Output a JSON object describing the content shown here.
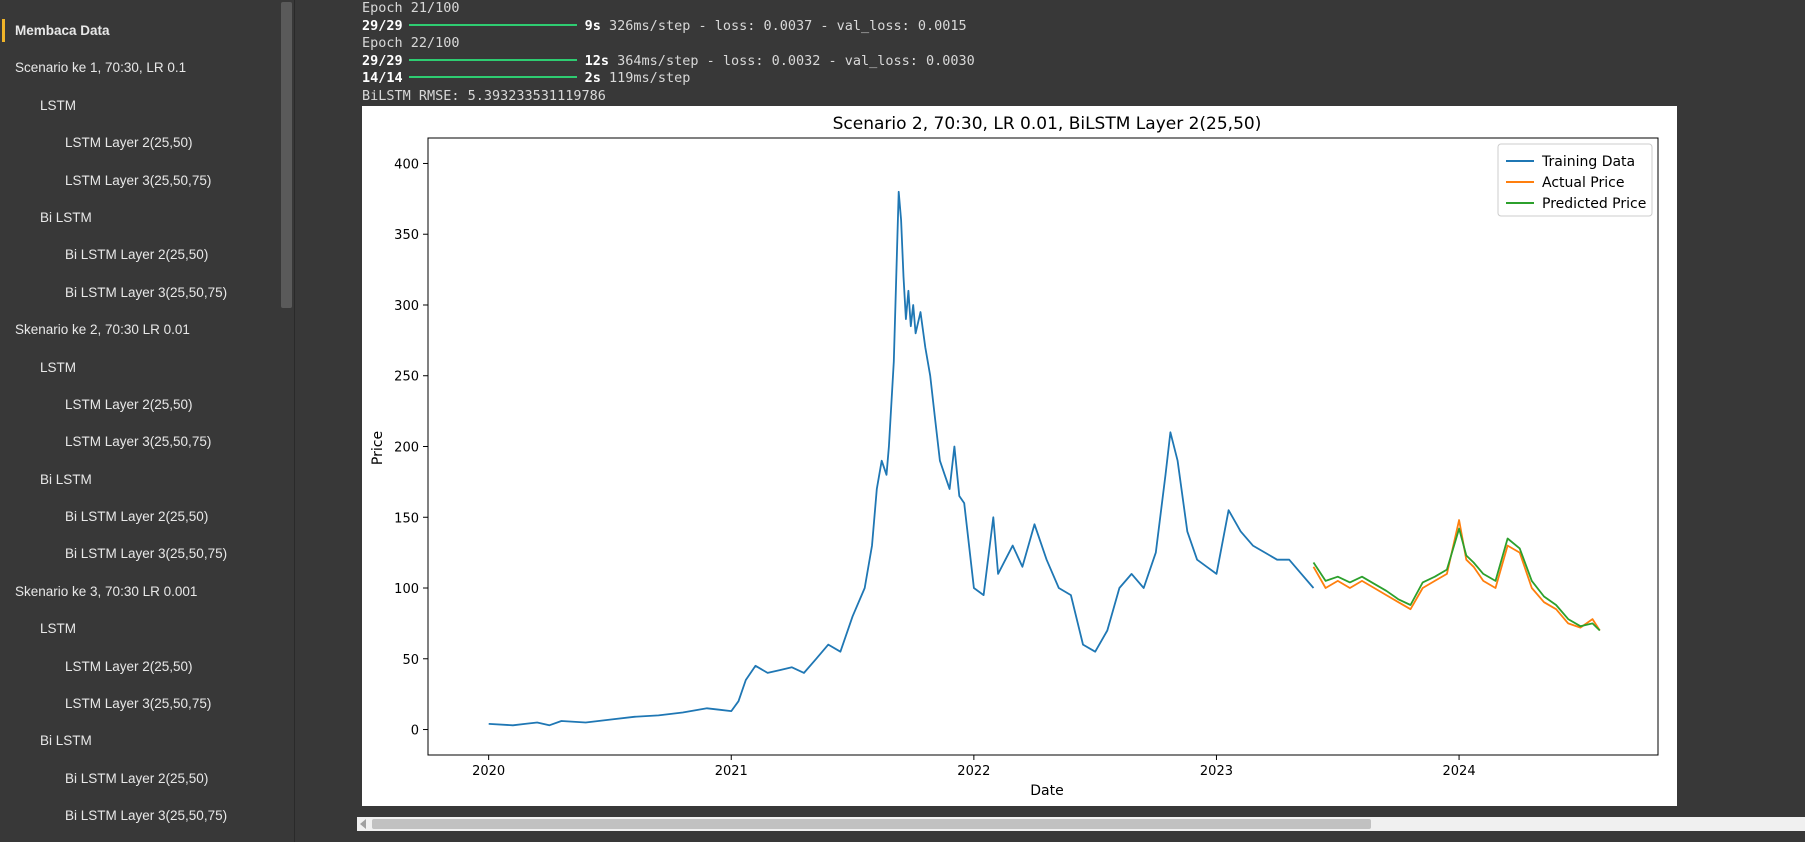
{
  "sidebar": {
    "items": [
      {
        "label": "Membaca Data",
        "level": 1,
        "active": true
      },
      {
        "label": "Scenario ke 1, 70:30, LR 0.1",
        "level": 1
      },
      {
        "label": "LSTM",
        "level": 2
      },
      {
        "label": "LSTM Layer 2(25,50)",
        "level": 3
      },
      {
        "label": "LSTM Layer 3(25,50,75)",
        "level": 3
      },
      {
        "label": "Bi LSTM",
        "level": 2
      },
      {
        "label": "Bi LSTM Layer 2(25,50)",
        "level": 3
      },
      {
        "label": "Bi LSTM Layer 3(25,50,75)",
        "level": 3
      },
      {
        "label": "Skenario ke 2, 70:30 LR 0.01",
        "level": 1
      },
      {
        "label": "LSTM",
        "level": 2
      },
      {
        "label": "LSTM Layer 2(25,50)",
        "level": 3
      },
      {
        "label": "LSTM Layer 3(25,50,75)",
        "level": 3
      },
      {
        "label": "Bi LSTM",
        "level": 2
      },
      {
        "label": "Bi LSTM Layer 2(25,50)",
        "level": 3
      },
      {
        "label": "Bi LSTM Layer 3(25,50,75)",
        "level": 3
      },
      {
        "label": "Skenario ke 3, 70:30 LR 0.001",
        "level": 1
      },
      {
        "label": "LSTM",
        "level": 2
      },
      {
        "label": "LSTM Layer 2(25,50)",
        "level": 3
      },
      {
        "label": "LSTM Layer 3(25,50,75)",
        "level": 3
      },
      {
        "label": "Bi LSTM",
        "level": 2
      },
      {
        "label": "Bi LSTM Layer 2(25,50)",
        "level": 3
      },
      {
        "label": "Bi LSTM Layer 3(25,50,75)",
        "level": 3
      }
    ]
  },
  "output": {
    "epoch21": "Epoch 21/100",
    "step21_count": "29/29",
    "step21_time": "9s",
    "step21_rest": "326ms/step - loss: 0.0037 - val_loss: 0.0015",
    "epoch22": "Epoch 22/100",
    "step22_count": "29/29",
    "step22_time": "12s",
    "step22_rest": "364ms/step - loss: 0.0032 - val_loss: 0.0030",
    "predict_count": "14/14",
    "predict_time": "2s",
    "predict_rest": "119ms/step",
    "rmse": "BiLSTM RMSE: 5.393233531119786"
  },
  "chart_data": {
    "type": "line",
    "title": "Scenario 2, 70:30, LR 0.01, BiLSTM Layer 2(25,50)",
    "xlabel": "Date",
    "ylabel": "Price",
    "xlim": [
      2019.75,
      2024.82
    ],
    "ylim": [
      -18,
      418
    ],
    "xticks": [
      2020,
      2021,
      2022,
      2023,
      2024
    ],
    "xtick_labels": [
      "2020",
      "2021",
      "2022",
      "2023",
      "2024"
    ],
    "yticks": [
      0,
      50,
      100,
      150,
      200,
      250,
      300,
      350,
      400
    ],
    "legend_position": "top-right",
    "grid": false,
    "series": [
      {
        "name": "Training Data",
        "color": "#1f77b4",
        "x": [
          2020.0,
          2020.1,
          2020.15,
          2020.2,
          2020.25,
          2020.3,
          2020.4,
          2020.5,
          2020.6,
          2020.7,
          2020.8,
          2020.9,
          2020.95,
          2021.0,
          2021.03,
          2021.06,
          2021.1,
          2021.15,
          2021.2,
          2021.25,
          2021.3,
          2021.35,
          2021.4,
          2021.45,
          2021.5,
          2021.55,
          2021.58,
          2021.6,
          2021.62,
          2021.64,
          2021.65,
          2021.67,
          2021.69,
          2021.7,
          2021.71,
          2021.72,
          2021.73,
          2021.74,
          2021.75,
          2021.76,
          2021.78,
          2021.8,
          2021.82,
          2021.84,
          2021.86,
          2021.88,
          2021.9,
          2021.92,
          2021.94,
          2021.96,
          2022.0,
          2022.04,
          2022.08,
          2022.1,
          2022.13,
          2022.16,
          2022.2,
          2022.25,
          2022.3,
          2022.35,
          2022.4,
          2022.45,
          2022.5,
          2022.55,
          2022.6,
          2022.65,
          2022.7,
          2022.75,
          2022.79,
          2022.81,
          2022.84,
          2022.88,
          2022.92,
          2022.96,
          2023.0,
          2023.05,
          2023.1,
          2023.15,
          2023.2,
          2023.25,
          2023.3,
          2023.35,
          2023.4
        ],
        "y": [
          4,
          3,
          4,
          5,
          3,
          6,
          5,
          7,
          9,
          10,
          12,
          15,
          14,
          13,
          20,
          35,
          45,
          40,
          42,
          44,
          40,
          50,
          60,
          55,
          80,
          100,
          130,
          170,
          190,
          180,
          200,
          260,
          380,
          360,
          320,
          290,
          310,
          285,
          300,
          280,
          295,
          270,
          250,
          220,
          190,
          180,
          170,
          200,
          165,
          160,
          100,
          95,
          150,
          110,
          120,
          130,
          115,
          145,
          120,
          100,
          95,
          60,
          55,
          70,
          100,
          110,
          100,
          125,
          180,
          210,
          190,
          140,
          120,
          115,
          110,
          155,
          140,
          130,
          125,
          120,
          120,
          110,
          100
        ]
      },
      {
        "name": "Actual Price",
        "color": "#ff7f0e",
        "x": [
          2023.4,
          2023.45,
          2023.5,
          2023.55,
          2023.6,
          2023.65,
          2023.7,
          2023.75,
          2023.8,
          2023.85,
          2023.9,
          2023.95,
          2024.0,
          2024.03,
          2024.06,
          2024.1,
          2024.15,
          2024.2,
          2024.25,
          2024.3,
          2024.35,
          2024.4,
          2024.45,
          2024.5,
          2024.55,
          2024.58
        ],
        "y": [
          115,
          100,
          105,
          100,
          105,
          100,
          95,
          90,
          85,
          100,
          105,
          110,
          148,
          120,
          115,
          105,
          100,
          130,
          125,
          100,
          90,
          85,
          75,
          72,
          78,
          70
        ]
      },
      {
        "name": "Predicted Price",
        "color": "#2ca02c",
        "x": [
          2023.4,
          2023.45,
          2023.5,
          2023.55,
          2023.6,
          2023.65,
          2023.7,
          2023.75,
          2023.8,
          2023.85,
          2023.9,
          2023.95,
          2024.0,
          2024.03,
          2024.06,
          2024.1,
          2024.15,
          2024.2,
          2024.25,
          2024.3,
          2024.35,
          2024.4,
          2024.45,
          2024.5,
          2024.55,
          2024.58
        ],
        "y": [
          118,
          105,
          108,
          104,
          108,
          103,
          98,
          92,
          88,
          104,
          108,
          113,
          142,
          123,
          118,
          110,
          105,
          135,
          128,
          105,
          94,
          88,
          78,
          73,
          75,
          70
        ]
      }
    ]
  }
}
